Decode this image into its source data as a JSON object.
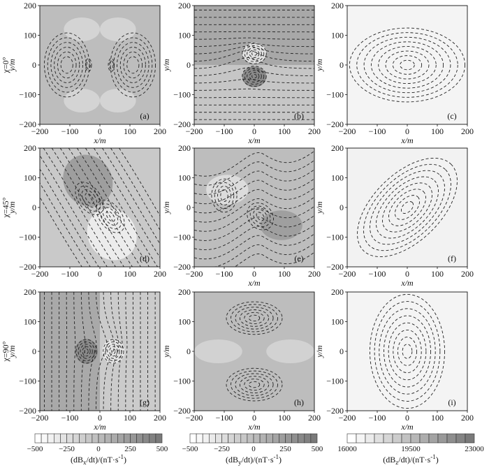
{
  "figure": {
    "row_labels": [
      "χ=0°",
      "χ=45°",
      "χ=90°"
    ],
    "xlabel": "x/m",
    "ylabel": "y/m",
    "xticks": [
      -200,
      -100,
      0,
      100,
      200
    ],
    "yticks": [
      -200,
      -100,
      0,
      100,
      200
    ],
    "colors": {
      "low": "#ffffff",
      "high": "#7a7a7a",
      "contour": "#222222"
    }
  },
  "chart_data": [
    {
      "type": "heatmap",
      "panel_label": "(a)",
      "row": 0,
      "col": 0,
      "xlim": [
        -200,
        200
      ],
      "ylim": [
        -200,
        200
      ],
      "xlabel": "x/m",
      "ylabel": "y/m",
      "pattern": "two kidney-shaped lobes at x≈±110 with small closed contours near x≈±40 at y=0"
    },
    {
      "type": "heatmap",
      "panel_label": "(b)",
      "row": 0,
      "col": 1,
      "xlim": [
        -200,
        200
      ],
      "ylim": [
        -200,
        200
      ],
      "xlabel": "x/m",
      "ylabel": "y/m",
      "pattern": "dense horizontal contours with dipole at the origin"
    },
    {
      "type": "heatmap",
      "panel_label": "(c)",
      "row": 0,
      "col": 2,
      "xlim": [
        -200,
        200
      ],
      "ylim": [
        -200,
        200
      ],
      "xlabel": "x/m",
      "ylabel": "y/m",
      "pattern": "concentric ellipses elongated along x, centered at origin"
    },
    {
      "type": "heatmap",
      "panel_label": "(d)",
      "row": 1,
      "col": 0,
      "xlim": [
        -200,
        200
      ],
      "ylim": [
        -200,
        200
      ],
      "xlabel": "",
      "ylabel": "y/m",
      "pattern": "diagonal dipole, dark upper-left, light lower-right"
    },
    {
      "type": "heatmap",
      "panel_label": "(e)",
      "row": 1,
      "col": 1,
      "xlim": [
        -200,
        200
      ],
      "ylim": [
        -200,
        200
      ],
      "xlabel": "x/m",
      "ylabel": "y/m",
      "pattern": "swirling diagonal contours around origin"
    },
    {
      "type": "heatmap",
      "panel_label": "(f)",
      "row": 1,
      "col": 2,
      "xlim": [
        -200,
        200
      ],
      "ylim": [
        -200,
        200
      ],
      "xlabel": "x/m",
      "ylabel": "y/m",
      "pattern": "concentric ellipses tilted 45°, centered at origin"
    },
    {
      "type": "heatmap",
      "panel_label": "(g)",
      "row": 2,
      "col": 0,
      "xlim": [
        -200,
        200
      ],
      "ylim": [
        -200,
        200
      ],
      "xlabel": "x/m",
      "ylabel": "y/m",
      "pattern": "dense vertical contours with dipole at the origin"
    },
    {
      "type": "heatmap",
      "panel_label": "(h)",
      "row": 2,
      "col": 1,
      "xlim": [
        -200,
        200
      ],
      "ylim": [
        -200,
        200
      ],
      "xlabel": "x/m",
      "ylabel": "y/m",
      "pattern": "two lobes above and below origin at y≈±110"
    },
    {
      "type": "heatmap",
      "panel_label": "(i)",
      "row": 2,
      "col": 2,
      "xlim": [
        -200,
        200
      ],
      "ylim": [
        -200,
        200
      ],
      "xlabel": "x/m",
      "ylabel": "y/m",
      "pattern": "concentric ellipses elongated along y, centered at origin"
    }
  ],
  "colorbars": [
    {
      "ticks": [
        "-500",
        "-250",
        "0",
        "250",
        "500"
      ],
      "label_prefix": "(dB",
      "label_sub": "x",
      "label_suffix": "/dt)/(nT·s",
      "label_sup": "-1",
      "label_end": ")",
      "n_bins": 20
    },
    {
      "ticks": [
        "-500",
        "-250",
        "0",
        "250",
        "500"
      ],
      "label_prefix": "(dB",
      "label_sub": "y",
      "label_suffix": "/dt)/(nT·s",
      "label_sup": "-1",
      "label_end": ")",
      "n_bins": 20
    },
    {
      "ticks": [
        "16000",
        "19500",
        "23000"
      ],
      "label_prefix": "(dB",
      "label_sub": "z",
      "label_suffix": "/dt)/(nT·s",
      "label_sup": "-1",
      "label_end": ")",
      "n_bins": 14
    }
  ]
}
